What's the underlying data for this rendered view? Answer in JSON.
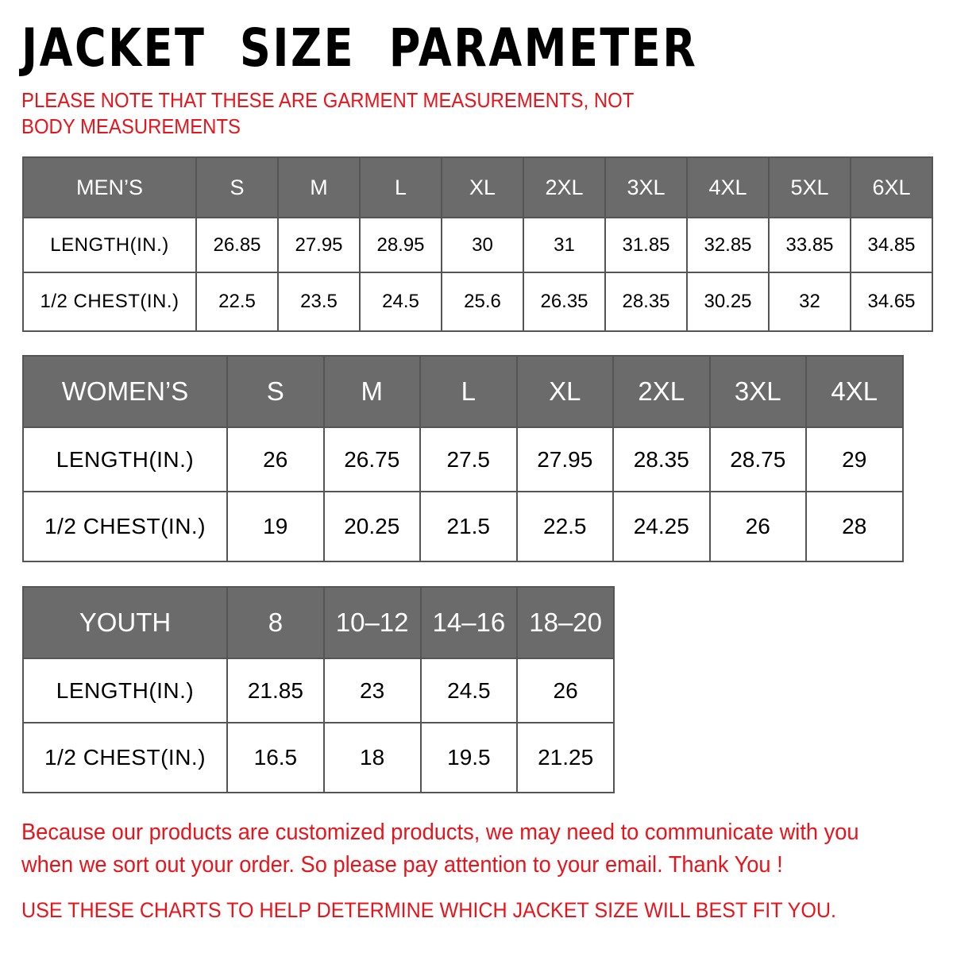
{
  "title": "JACKET  SIZE  PARAMETER",
  "note": "PLEASE NOTE THAT THESE ARE GARMENT MEASUREMENTS, NOT BODY MEASUREMENTS",
  "colors": {
    "header_bg": "#6b6b6b",
    "accent_red": "#e8141b"
  },
  "mens": {
    "header": [
      "MEN’S",
      "S",
      "M",
      "L",
      "XL",
      "2XL",
      "3XL",
      "4XL",
      "5XL",
      "6XL"
    ],
    "rows": [
      [
        "LENGTH(IN.)",
        "26.85",
        "27.95",
        "28.95",
        "30",
        "31",
        "31.85",
        "32.85",
        "33.85",
        "34.85"
      ],
      [
        "1/2 CHEST(IN.)",
        "22.5",
        "23.5",
        "24.5",
        "25.6",
        "26.35",
        "28.35",
        "30.25",
        "32",
        "34.65"
      ]
    ]
  },
  "womens": {
    "header": [
      "WOMEN’S",
      "S",
      "M",
      "L",
      "XL",
      "2XL",
      "3XL",
      "4XL"
    ],
    "rows": [
      [
        "LENGTH(IN.)",
        "26",
        "26.75",
        "27.5",
        "27.95",
        "28.35",
        "28.75",
        "29"
      ],
      [
        "1/2 CHEST(IN.)",
        "19",
        "20.25",
        "21.5",
        "22.5",
        "24.25",
        "26",
        "28"
      ]
    ]
  },
  "youth": {
    "header": [
      "YOUTH",
      "8",
      "10–12",
      "14–16",
      "18–20"
    ],
    "rows": [
      [
        "LENGTH(IN.)",
        "21.85",
        "23",
        "24.5",
        "26"
      ],
      [
        "1/2 CHEST(IN.)",
        "16.5",
        "18",
        "19.5",
        "21.25"
      ]
    ]
  },
  "message": "Because our products are customized products, we may need to communicate with you when we sort out your order. So please pay attention to your email. Thank You !",
  "footer": "USE THESE CHARTS TO HELP DETERMINE WHICH JACKET SIZE WILL BEST FIT YOU."
}
